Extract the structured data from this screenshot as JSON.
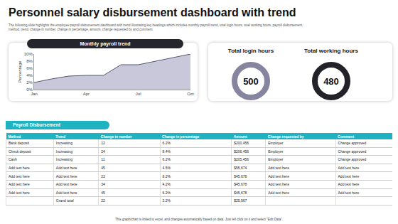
{
  "header": {
    "title": "Personnel salary disbursement dashboard with trend",
    "subtitle": "The following slide highlights the employee payroll disbursement dashboard with trend illustrating key headings which includes monthly payroll trend, total login hours, total working hours, payroll disbursement, method, trend, change in number, change in percentage, amount, change requested by and comment"
  },
  "chart_data": {
    "type": "area",
    "title": "Monthly payroll trend",
    "y_label": "Percentage",
    "categories": [
      "Jan",
      null,
      null,
      "Apr",
      null,
      null,
      "Jul",
      null,
      null,
      "Oct"
    ],
    "values": [
      2,
      3,
      3.8,
      4,
      4,
      7,
      7,
      8,
      9,
      10
    ],
    "color": "#c9c7da",
    "line_color": "#55556b",
    "ylim": [
      0,
      10
    ],
    "yticks": [
      {
        "value": 0,
        "label": "0%"
      },
      {
        "value": 2,
        "label": "2%"
      },
      {
        "value": 4,
        "label": "4%"
      },
      {
        "value": 6,
        "label": "6%"
      },
      {
        "value": 8,
        "label": "8%"
      },
      {
        "value": 10,
        "label": "10%"
      }
    ],
    "grid": false
  },
  "kpis": [
    {
      "label": "Total login hours",
      "value": 500,
      "color": "#86859f"
    },
    {
      "label": "Total working hours",
      "value": 480,
      "color": "#222228"
    }
  ],
  "table": {
    "title": "Payroll Disbursement",
    "columns": [
      "Method",
      "Trend",
      "Change in number",
      "Change in percentage",
      "Amount",
      "Change requested by",
      "Comment"
    ],
    "rows": [
      [
        "Bank deposit",
        "Increasing",
        "12",
        "6.2%",
        "$200,456",
        "Employer",
        "Change approved"
      ],
      [
        "Check deposit",
        "Increasing",
        "24",
        "8.4%",
        "$206,456",
        "Employer",
        "Change approved"
      ],
      [
        "Cash",
        "Increasing",
        "11",
        "6.2%",
        "$205,456",
        "Employer",
        "Change approved"
      ],
      [
        "Add text here",
        "Add text here",
        "45",
        "4.5%",
        "$55,674",
        "Add text here",
        "Add text here"
      ],
      [
        "Add text here",
        "Add text here",
        "23",
        "8.2%",
        "$45,678",
        "Add text here",
        "Add text here"
      ],
      [
        "Add text here",
        "Add text here",
        "34",
        "4.2%",
        "$45,678",
        "Add text here",
        "Add text here"
      ],
      [
        "Add text here",
        "Add text here",
        "45",
        "6.2%",
        "$45,678",
        "Add text here",
        "Add text here"
      ],
      [
        null,
        "Grand total",
        "22",
        "2.2%",
        "$25,567",
        null,
        null
      ]
    ]
  },
  "footer": "This graph/chart is linked to excel, and changes automatically based on data. Just left click on it and select \"Edit Data\"."
}
